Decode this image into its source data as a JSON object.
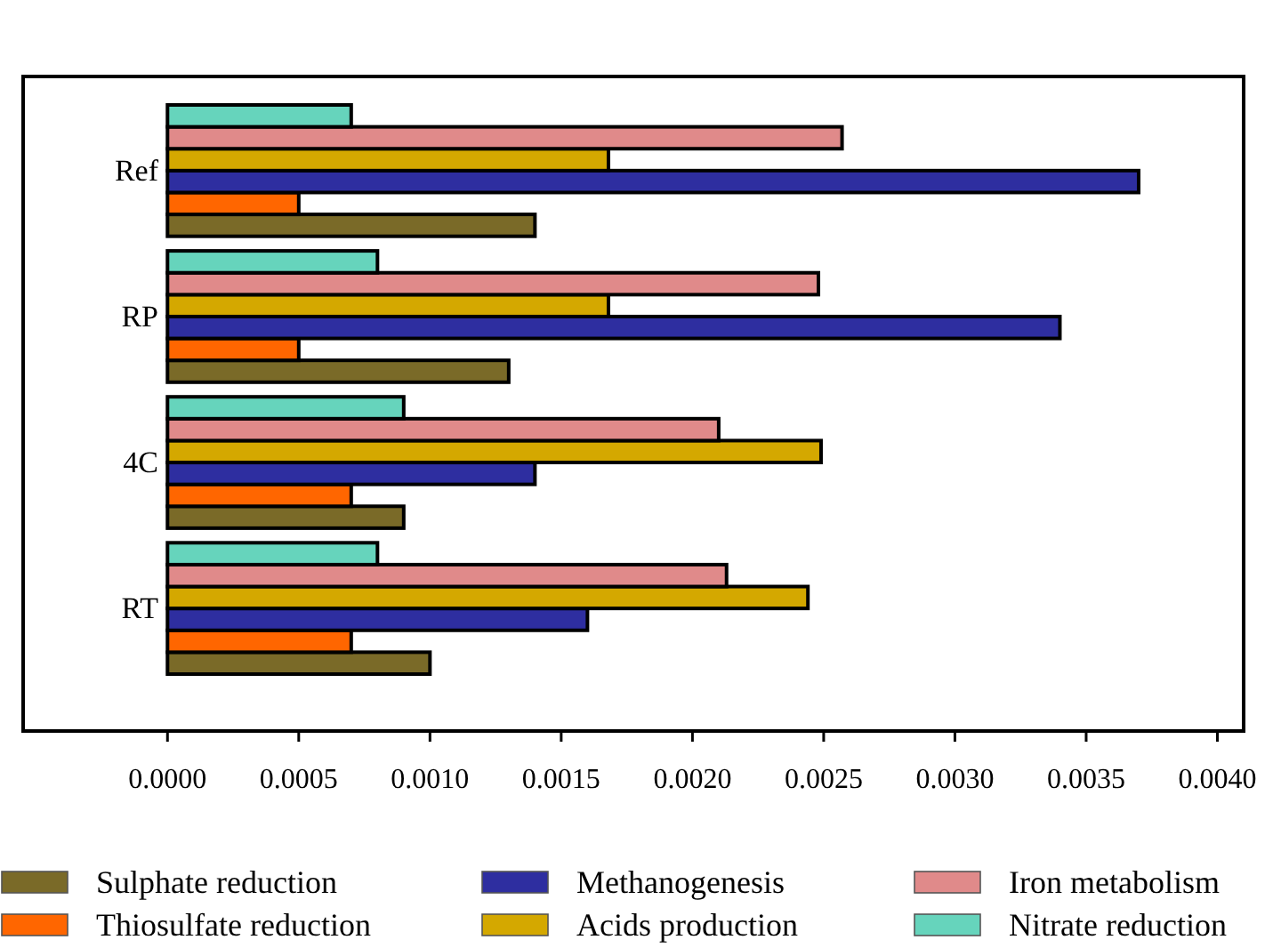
{
  "chart_data": {
    "type": "bar",
    "orientation": "horizontal",
    "categories": [
      "Ref",
      "RP",
      "4C",
      "RT"
    ],
    "series": [
      {
        "name": "Sulphate reduction",
        "color": "#7a6a28",
        "values": [
          0.0014,
          0.0013,
          0.0009,
          0.001
        ]
      },
      {
        "name": "Thiosulfate reduction",
        "color": "#ff6600",
        "values": [
          0.0005,
          0.0005,
          0.0007,
          0.0007
        ]
      },
      {
        "name": "Methanogenesis",
        "color": "#2e2ea0",
        "values": [
          0.0037,
          0.0034,
          0.0014,
          0.0016
        ]
      },
      {
        "name": "Acids production",
        "color": "#d4a800",
        "values": [
          0.00168,
          0.00168,
          0.00249,
          0.00244
        ]
      },
      {
        "name": "Iron metabolism",
        "color": "#e08a8a",
        "values": [
          0.00257,
          0.00248,
          0.0021,
          0.00213
        ]
      },
      {
        "name": "Nitrate reduction",
        "color": "#66d4bc",
        "values": [
          0.0007,
          0.0008,
          0.0009,
          0.0008
        ]
      }
    ],
    "xlim": [
      -0.00055,
      0.0041
    ],
    "xticks": [
      {
        "value": 0,
        "label": "0.0000"
      },
      {
        "value": 0.0005,
        "label": "0.0005"
      },
      {
        "value": 0.001,
        "label": "0.0010"
      },
      {
        "value": 0.0015,
        "label": "0.0015"
      },
      {
        "value": 0.002,
        "label": "0.0020"
      },
      {
        "value": 0.0025,
        "label": "0.0025"
      },
      {
        "value": 0.003,
        "label": "0.0030"
      },
      {
        "value": 0.0035,
        "label": "0.0035"
      },
      {
        "value": 0.004,
        "label": "0.0040"
      }
    ],
    "legend": "bottom",
    "grid": false
  }
}
